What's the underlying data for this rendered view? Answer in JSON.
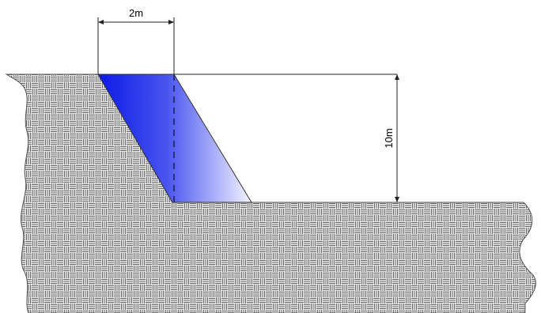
{
  "diagram": {
    "width_label": "2m",
    "height_label": "10m"
  },
  "colors": {
    "fill_dark": "#0a1ae6",
    "fill_light": "#f4f5ff",
    "ground_line": "#555555",
    "ground_bg": "#e8e8e8",
    "dimension_line": "#000000",
    "wedge_edge": "#333333"
  }
}
